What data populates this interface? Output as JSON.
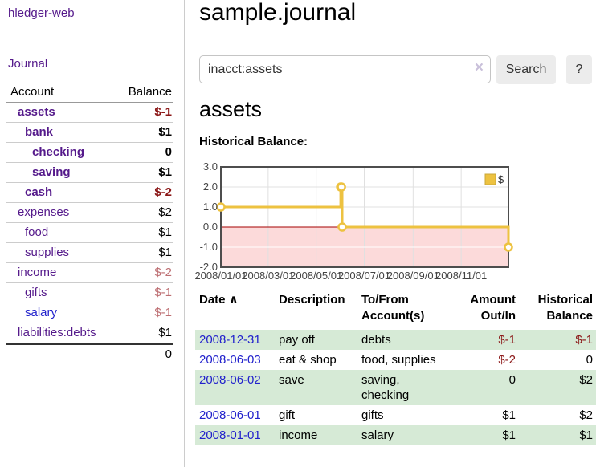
{
  "app": {
    "title": "hledger-web"
  },
  "sidebar": {
    "journal_link": "Journal",
    "accounts_header": {
      "account": "Account",
      "balance": "Balance"
    },
    "accounts": [
      {
        "name": "assets",
        "level": 1,
        "emphasis": true,
        "balance": "$-1",
        "balance_color": "negative-strong"
      },
      {
        "name": "bank",
        "level": 2,
        "emphasis": true,
        "balance": "$1",
        "balance_color": "normal"
      },
      {
        "name": "checking",
        "level": 3,
        "emphasis": true,
        "balance": "0",
        "balance_color": "normal"
      },
      {
        "name": "saving",
        "level": 3,
        "emphasis": true,
        "balance": "$1",
        "balance_color": "normal"
      },
      {
        "name": "cash",
        "level": 2,
        "emphasis": true,
        "balance": "$-2",
        "balance_color": "negative-strong"
      },
      {
        "name": "expenses",
        "level": 1,
        "emphasis": false,
        "balance": "$2",
        "balance_color": "normal"
      },
      {
        "name": "food",
        "level": 2,
        "emphasis": false,
        "balance": "$1",
        "balance_color": "normal"
      },
      {
        "name": "supplies",
        "level": 2,
        "emphasis": false,
        "balance": "$1",
        "balance_color": "normal"
      },
      {
        "name": "income",
        "level": 1,
        "emphasis": false,
        "balance": "$-2",
        "balance_color": "negative-muted"
      },
      {
        "name": "gifts",
        "level": 2,
        "emphasis": false,
        "balance": "$-1",
        "balance_color": "negative-muted"
      },
      {
        "name": "salary",
        "level": 2,
        "emphasis": false,
        "link_state": "unvisited",
        "balance": "$-1",
        "balance_color": "negative-muted"
      },
      {
        "name": "liabilities:debts",
        "level": 1,
        "emphasis": false,
        "balance": "$1",
        "balance_color": "normal"
      }
    ],
    "total": "0"
  },
  "header": {
    "title": "sample.journal"
  },
  "search": {
    "value": "inacct:assets",
    "clear_icon": "×",
    "button": "Search",
    "help_button": "?"
  },
  "account_page": {
    "heading": "assets",
    "chart_label": "Historical Balance:"
  },
  "chart_data": {
    "type": "line",
    "title": "Historical Balance:",
    "step": true,
    "legend": "$",
    "legend_position": "top-right",
    "series": [
      {
        "name": "$",
        "points": [
          [
            "2008-01-01",
            1
          ],
          [
            "2008-06-01",
            2
          ],
          [
            "2008-06-02",
            2
          ],
          [
            "2008-06-03",
            0
          ],
          [
            "2008-12-31",
            -1
          ]
        ]
      }
    ],
    "x_range": [
      "2008-01-01",
      "2008-12-31"
    ],
    "ylim": [
      -2.0,
      3.0
    ],
    "y_tick_labels": [
      "3.0",
      "2.0",
      "1.0",
      "0.0",
      "-1.0",
      "-2.0"
    ],
    "x_ticks": [
      {
        "date": "2008-01-01",
        "label": "2008/01/01"
      },
      {
        "date": "2008-03-01",
        "label": "2008/03/01"
      },
      {
        "date": "2008-05-01",
        "label": "2008/05/01"
      },
      {
        "date": "2008-07-01",
        "label": "2008/07/01"
      },
      {
        "date": "2008-09-01",
        "label": "2008/09/01"
      },
      {
        "date": "2008-11-01",
        "label": "2008/11/01"
      }
    ],
    "grid": true,
    "negative_region_shaded": true
  },
  "register": {
    "columns": [
      "Date",
      "Description",
      "To/From Account(s)",
      "Amount Out/In",
      "Historical Balance"
    ],
    "sort": {
      "column": "Date",
      "direction": "ascending",
      "icon": "∧"
    },
    "rows": [
      {
        "date": "2008-12-31",
        "description": "pay off",
        "accounts": "debts",
        "amount": "$-1",
        "amount_negative": true,
        "balance": "$-1",
        "balance_negative": true
      },
      {
        "date": "2008-06-03",
        "description": "eat & shop",
        "accounts": "food, supplies",
        "amount": "$-2",
        "amount_negative": true,
        "balance": "0",
        "balance_negative": false
      },
      {
        "date": "2008-06-02",
        "description": "save",
        "accounts": "saving, checking",
        "amount": "0",
        "amount_negative": false,
        "balance": "$2",
        "balance_negative": false
      },
      {
        "date": "2008-06-01",
        "description": "gift",
        "accounts": "gifts",
        "amount": "$1",
        "amount_negative": false,
        "balance": "$2",
        "balance_negative": false
      },
      {
        "date": "2008-01-01",
        "description": "income",
        "accounts": "salary",
        "amount": "$1",
        "amount_negative": false,
        "balance": "$1",
        "balance_negative": false
      }
    ]
  },
  "colors": {
    "link_visited": "#551a8b",
    "link_unvisited": "#2222cc",
    "negative_strong": "#8b1717",
    "negative_muted": "#bd6e72",
    "row_stripe_green": "#d6ead6",
    "chart_line": "#edc240",
    "chart_marker_fill": "#ffffff",
    "chart_negative_fill": "#fcdada",
    "chart_zero_line": "#a40000",
    "chart_border": "#4d4d4d",
    "chart_grid": "#e0e0e0"
  }
}
